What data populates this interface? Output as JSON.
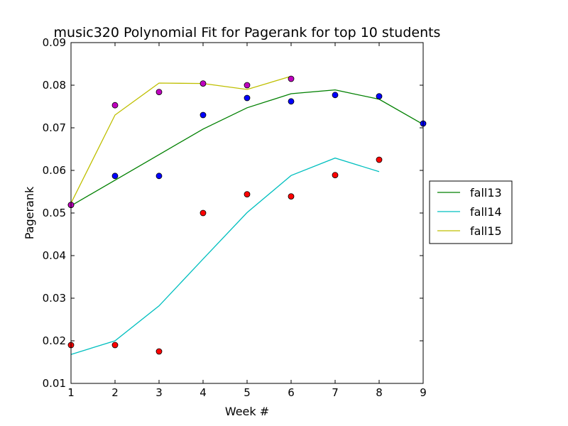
{
  "chart_data": {
    "type": "line",
    "title": "music320 Polynomial Fit for Pagerank for top 10 students",
    "xlabel": "Week #",
    "ylabel": "Pagerank",
    "xlim": [
      1,
      9
    ],
    "ylim": [
      0.01,
      0.09
    ],
    "xticks": [
      "1",
      "2",
      "3",
      "4",
      "5",
      "6",
      "7",
      "8",
      "9"
    ],
    "yticks": [
      "0.01",
      "0.02",
      "0.03",
      "0.04",
      "0.05",
      "0.06",
      "0.07",
      "0.08",
      "0.09"
    ],
    "grid": false,
    "legend_position": "outside-right",
    "series": [
      {
        "name": "fall13",
        "line_color": "#008000",
        "marker_color": "#0000ff",
        "line": {
          "x": [
            1,
            2,
            3,
            4,
            5,
            6,
            7,
            8,
            9
          ],
          "y": [
            0.0517,
            0.0577,
            0.0637,
            0.0697,
            0.0747,
            0.078,
            0.0789,
            0.0767,
            0.0708
          ]
        },
        "points": {
          "x": [
            1,
            2,
            3,
            4,
            5,
            6,
            7,
            8,
            9
          ],
          "y": [
            0.0519,
            0.0587,
            0.0587,
            0.073,
            0.077,
            0.0762,
            0.0777,
            0.0774,
            0.071
          ]
        }
      },
      {
        "name": "fall14",
        "line_color": "#00bfbf",
        "marker_color": "#ff0000",
        "line": {
          "x": [
            1,
            2,
            3,
            4,
            5,
            6,
            7,
            8
          ],
          "y": [
            0.0168,
            0.02,
            0.0282,
            0.0392,
            0.0501,
            0.0588,
            0.0629,
            0.0597
          ]
        },
        "points": {
          "x": [
            1,
            2,
            3,
            4,
            5,
            6,
            7,
            8
          ],
          "y": [
            0.019,
            0.019,
            0.0175,
            0.05,
            0.0544,
            0.0539,
            0.0589,
            0.0625
          ]
        }
      },
      {
        "name": "fall15",
        "line_color": "#bfbf00",
        "marker_color": "#bf00bf",
        "line": {
          "x": [
            1,
            2,
            3,
            4,
            5,
            6
          ],
          "y": [
            0.0523,
            0.073,
            0.0805,
            0.0804,
            0.079,
            0.0821
          ]
        },
        "points": {
          "x": [
            1,
            2,
            3,
            4,
            5,
            6
          ],
          "y": [
            0.0519,
            0.0753,
            0.0784,
            0.0804,
            0.08,
            0.0815
          ]
        }
      }
    ]
  }
}
